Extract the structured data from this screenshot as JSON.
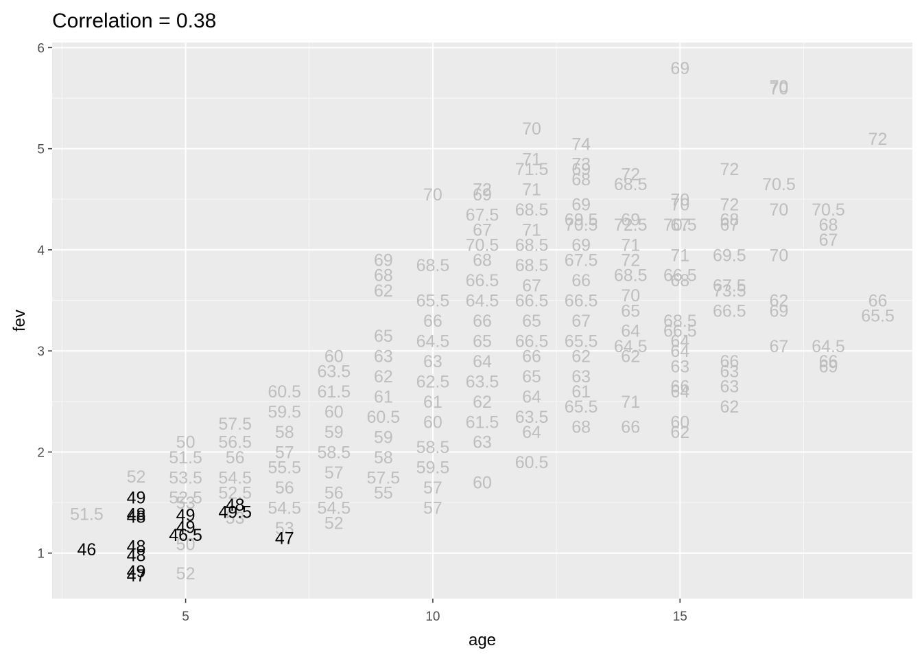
{
  "chart_data": {
    "type": "scatter",
    "title": "Correlation = 0.38",
    "xlabel": "age",
    "ylabel": "fev",
    "xlim": [
      2.3,
      19.7
    ],
    "ylim": [
      0.55,
      6.05
    ],
    "x_ticks": [
      5,
      10,
      15
    ],
    "y_ticks": [
      1,
      2,
      3,
      4,
      5,
      6
    ],
    "grid": true,
    "legend": "none",
    "point_colors": {
      "highlight": "#000000",
      "other": "#bebebe"
    },
    "highlighted": [
      {
        "x": 3,
        "y": 1.04,
        "label": "46"
      },
      {
        "x": 4,
        "y": 1.55,
        "label": "49"
      },
      {
        "x": 4,
        "y": 1.39,
        "label": "48"
      },
      {
        "x": 4,
        "y": 1.36,
        "label": "48"
      },
      {
        "x": 4,
        "y": 1.07,
        "label": "48"
      },
      {
        "x": 4,
        "y": 0.98,
        "label": "48"
      },
      {
        "x": 4,
        "y": 0.82,
        "label": "49"
      },
      {
        "x": 4,
        "y": 0.78,
        "label": "47"
      },
      {
        "x": 5,
        "y": 1.38,
        "label": "49"
      },
      {
        "x": 5,
        "y": 1.26,
        "label": "49"
      },
      {
        "x": 5,
        "y": 1.18,
        "label": "46.5"
      },
      {
        "x": 6,
        "y": 1.48,
        "label": "48"
      },
      {
        "x": 6,
        "y": 1.41,
        "label": "49.5"
      },
      {
        "x": 7,
        "y": 1.15,
        "label": "47"
      }
    ],
    "others": [
      {
        "x": 3,
        "y": 1.39,
        "label": "51.5"
      },
      {
        "x": 4,
        "y": 1.76,
        "label": "52"
      },
      {
        "x": 5,
        "y": 0.8,
        "label": "52"
      },
      {
        "x": 5,
        "y": 1.09,
        "label": "50"
      },
      {
        "x": 5,
        "y": 1.5,
        "label": "53"
      },
      {
        "x": 5,
        "y": 1.55,
        "label": "52.5"
      },
      {
        "x": 5,
        "y": 1.75,
        "label": "53.5"
      },
      {
        "x": 5,
        "y": 1.95,
        "label": "51.5"
      },
      {
        "x": 5,
        "y": 2.1,
        "label": "50"
      },
      {
        "x": 6,
        "y": 1.35,
        "label": "53"
      },
      {
        "x": 6,
        "y": 1.6,
        "label": "52.5"
      },
      {
        "x": 6,
        "y": 1.75,
        "label": "54.5"
      },
      {
        "x": 6,
        "y": 1.95,
        "label": "56"
      },
      {
        "x": 6,
        "y": 2.1,
        "label": "56.5"
      },
      {
        "x": 6,
        "y": 2.28,
        "label": "57.5"
      },
      {
        "x": 7,
        "y": 1.25,
        "label": "53"
      },
      {
        "x": 7,
        "y": 1.45,
        "label": "54.5"
      },
      {
        "x": 7,
        "y": 1.65,
        "label": "56"
      },
      {
        "x": 7,
        "y": 1.85,
        "label": "55.5"
      },
      {
        "x": 7,
        "y": 2.0,
        "label": "57"
      },
      {
        "x": 7,
        "y": 2.2,
        "label": "58"
      },
      {
        "x": 7,
        "y": 2.4,
        "label": "59.5"
      },
      {
        "x": 7,
        "y": 2.6,
        "label": "60.5"
      },
      {
        "x": 8,
        "y": 1.3,
        "label": "52"
      },
      {
        "x": 8,
        "y": 1.45,
        "label": "54.5"
      },
      {
        "x": 8,
        "y": 1.6,
        "label": "56"
      },
      {
        "x": 8,
        "y": 1.8,
        "label": "57"
      },
      {
        "x": 8,
        "y": 2.0,
        "label": "58.5"
      },
      {
        "x": 8,
        "y": 2.2,
        "label": "59"
      },
      {
        "x": 8,
        "y": 2.4,
        "label": "60"
      },
      {
        "x": 8,
        "y": 2.6,
        "label": "61.5"
      },
      {
        "x": 8,
        "y": 2.8,
        "label": "63.5"
      },
      {
        "x": 8,
        "y": 2.95,
        "label": "60"
      },
      {
        "x": 9,
        "y": 1.6,
        "label": "55"
      },
      {
        "x": 9,
        "y": 1.75,
        "label": "57.5"
      },
      {
        "x": 9,
        "y": 1.95,
        "label": "58"
      },
      {
        "x": 9,
        "y": 2.15,
        "label": "59"
      },
      {
        "x": 9,
        "y": 2.35,
        "label": "60.5"
      },
      {
        "x": 9,
        "y": 2.55,
        "label": "61"
      },
      {
        "x": 9,
        "y": 2.75,
        "label": "62"
      },
      {
        "x": 9,
        "y": 2.95,
        "label": "63"
      },
      {
        "x": 9,
        "y": 3.15,
        "label": "65"
      },
      {
        "x": 9,
        "y": 3.6,
        "label": "62"
      },
      {
        "x": 9,
        "y": 3.75,
        "label": "68"
      },
      {
        "x": 9,
        "y": 3.9,
        "label": "69"
      },
      {
        "x": 10,
        "y": 1.45,
        "label": "57"
      },
      {
        "x": 10,
        "y": 1.65,
        "label": "57"
      },
      {
        "x": 10,
        "y": 1.85,
        "label": "59.5"
      },
      {
        "x": 10,
        "y": 2.05,
        "label": "58.5"
      },
      {
        "x": 10,
        "y": 2.3,
        "label": "60"
      },
      {
        "x": 10,
        "y": 2.5,
        "label": "61"
      },
      {
        "x": 10,
        "y": 2.7,
        "label": "62.5"
      },
      {
        "x": 10,
        "y": 2.9,
        "label": "63"
      },
      {
        "x": 10,
        "y": 3.1,
        "label": "64.5"
      },
      {
        "x": 10,
        "y": 3.3,
        "label": "66"
      },
      {
        "x": 10,
        "y": 3.5,
        "label": "65.5"
      },
      {
        "x": 10,
        "y": 3.85,
        "label": "68.5"
      },
      {
        "x": 10,
        "y": 4.55,
        "label": "70"
      },
      {
        "x": 11,
        "y": 1.7,
        "label": "60"
      },
      {
        "x": 11,
        "y": 2.1,
        "label": "63"
      },
      {
        "x": 11,
        "y": 2.3,
        "label": "61.5"
      },
      {
        "x": 11,
        "y": 2.5,
        "label": "62"
      },
      {
        "x": 11,
        "y": 2.7,
        "label": "63.5"
      },
      {
        "x": 11,
        "y": 2.9,
        "label": "64"
      },
      {
        "x": 11,
        "y": 3.1,
        "label": "65"
      },
      {
        "x": 11,
        "y": 3.3,
        "label": "66"
      },
      {
        "x": 11,
        "y": 3.5,
        "label": "64.5"
      },
      {
        "x": 11,
        "y": 3.7,
        "label": "66.5"
      },
      {
        "x": 11,
        "y": 3.9,
        "label": "68"
      },
      {
        "x": 11,
        "y": 4.05,
        "label": "70.5"
      },
      {
        "x": 11,
        "y": 4.2,
        "label": "67"
      },
      {
        "x": 11,
        "y": 4.35,
        "label": "67.5"
      },
      {
        "x": 11,
        "y": 4.55,
        "label": "69"
      },
      {
        "x": 11,
        "y": 4.6,
        "label": "72"
      },
      {
        "x": 12,
        "y": 1.9,
        "label": "60.5"
      },
      {
        "x": 12,
        "y": 2.2,
        "label": "64"
      },
      {
        "x": 12,
        "y": 2.35,
        "label": "63.5"
      },
      {
        "x": 12,
        "y": 2.55,
        "label": "64"
      },
      {
        "x": 12,
        "y": 2.75,
        "label": "65"
      },
      {
        "x": 12,
        "y": 2.95,
        "label": "66"
      },
      {
        "x": 12,
        "y": 3.1,
        "label": "66.5"
      },
      {
        "x": 12,
        "y": 3.3,
        "label": "65"
      },
      {
        "x": 12,
        "y": 3.5,
        "label": "66.5"
      },
      {
        "x": 12,
        "y": 3.65,
        "label": "67"
      },
      {
        "x": 12,
        "y": 3.85,
        "label": "68.5"
      },
      {
        "x": 12,
        "y": 4.05,
        "label": "68.5"
      },
      {
        "x": 12,
        "y": 4.2,
        "label": "71"
      },
      {
        "x": 12,
        "y": 4.4,
        "label": "68.5"
      },
      {
        "x": 12,
        "y": 4.6,
        "label": "71"
      },
      {
        "x": 12,
        "y": 4.8,
        "label": "71.5"
      },
      {
        "x": 12,
        "y": 4.9,
        "label": "71"
      },
      {
        "x": 12,
        "y": 5.2,
        "label": "70"
      },
      {
        "x": 13,
        "y": 2.25,
        "label": "68"
      },
      {
        "x": 13,
        "y": 2.45,
        "label": "65.5"
      },
      {
        "x": 13,
        "y": 2.6,
        "label": "61"
      },
      {
        "x": 13,
        "y": 2.75,
        "label": "63"
      },
      {
        "x": 13,
        "y": 2.95,
        "label": "62"
      },
      {
        "x": 13,
        "y": 3.1,
        "label": "65.5"
      },
      {
        "x": 13,
        "y": 3.3,
        "label": "67"
      },
      {
        "x": 13,
        "y": 3.5,
        "label": "66.5"
      },
      {
        "x": 13,
        "y": 3.7,
        "label": "66"
      },
      {
        "x": 13,
        "y": 3.9,
        "label": "67.5"
      },
      {
        "x": 13,
        "y": 4.05,
        "label": "69"
      },
      {
        "x": 13,
        "y": 4.25,
        "label": "70.5"
      },
      {
        "x": 13,
        "y": 4.3,
        "label": "69.5"
      },
      {
        "x": 13,
        "y": 4.45,
        "label": "69"
      },
      {
        "x": 13,
        "y": 4.7,
        "label": "68"
      },
      {
        "x": 13,
        "y": 4.8,
        "label": "69"
      },
      {
        "x": 13,
        "y": 4.85,
        "label": "73"
      },
      {
        "x": 13,
        "y": 5.05,
        "label": "74"
      },
      {
        "x": 14,
        "y": 2.25,
        "label": "66"
      },
      {
        "x": 14,
        "y": 2.5,
        "label": "71"
      },
      {
        "x": 14,
        "y": 2.95,
        "label": "62"
      },
      {
        "x": 14,
        "y": 3.05,
        "label": "64.5"
      },
      {
        "x": 14,
        "y": 3.2,
        "label": "64"
      },
      {
        "x": 14,
        "y": 3.4,
        "label": "65"
      },
      {
        "x": 14,
        "y": 3.55,
        "label": "70"
      },
      {
        "x": 14,
        "y": 3.75,
        "label": "68.5"
      },
      {
        "x": 14,
        "y": 3.9,
        "label": "72"
      },
      {
        "x": 14,
        "y": 4.05,
        "label": "71"
      },
      {
        "x": 14,
        "y": 4.25,
        "label": "72.5"
      },
      {
        "x": 14,
        "y": 4.3,
        "label": "69"
      },
      {
        "x": 14,
        "y": 4.65,
        "label": "68.5"
      },
      {
        "x": 14,
        "y": 4.75,
        "label": "72"
      },
      {
        "x": 15,
        "y": 2.2,
        "label": "62"
      },
      {
        "x": 15,
        "y": 2.3,
        "label": "60"
      },
      {
        "x": 15,
        "y": 2.6,
        "label": "64"
      },
      {
        "x": 15,
        "y": 2.65,
        "label": "66"
      },
      {
        "x": 15,
        "y": 2.85,
        "label": "63"
      },
      {
        "x": 15,
        "y": 3.0,
        "label": "64"
      },
      {
        "x": 15,
        "y": 3.1,
        "label": "64"
      },
      {
        "x": 15,
        "y": 3.2,
        "label": "66.5"
      },
      {
        "x": 15,
        "y": 3.3,
        "label": "68.5"
      },
      {
        "x": 15,
        "y": 3.75,
        "label": "66.5"
      },
      {
        "x": 15,
        "y": 3.7,
        "label": "68"
      },
      {
        "x": 15,
        "y": 3.95,
        "label": "71"
      },
      {
        "x": 15,
        "y": 4.25,
        "label": "67"
      },
      {
        "x": 15,
        "y": 4.25,
        "label": "70.5"
      },
      {
        "x": 15,
        "y": 4.45,
        "label": "70"
      },
      {
        "x": 15,
        "y": 4.5,
        "label": "70"
      },
      {
        "x": 15,
        "y": 5.8,
        "label": "69"
      },
      {
        "x": 16,
        "y": 2.45,
        "label": "62"
      },
      {
        "x": 16,
        "y": 2.65,
        "label": "63"
      },
      {
        "x": 16,
        "y": 2.8,
        "label": "63"
      },
      {
        "x": 16,
        "y": 2.9,
        "label": "66"
      },
      {
        "x": 16,
        "y": 3.4,
        "label": "66.5"
      },
      {
        "x": 16,
        "y": 3.6,
        "label": "73.5"
      },
      {
        "x": 16,
        "y": 3.65,
        "label": "67.5"
      },
      {
        "x": 16,
        "y": 3.95,
        "label": "69.5"
      },
      {
        "x": 16,
        "y": 4.25,
        "label": "67"
      },
      {
        "x": 16,
        "y": 4.3,
        "label": "68"
      },
      {
        "x": 16,
        "y": 4.45,
        "label": "72"
      },
      {
        "x": 16,
        "y": 4.8,
        "label": "72"
      },
      {
        "x": 17,
        "y": 3.05,
        "label": "67"
      },
      {
        "x": 17,
        "y": 3.4,
        "label": "69"
      },
      {
        "x": 17,
        "y": 3.5,
        "label": "62"
      },
      {
        "x": 17,
        "y": 3.95,
        "label": "70"
      },
      {
        "x": 17,
        "y": 4.4,
        "label": "70"
      },
      {
        "x": 17,
        "y": 4.65,
        "label": "70.5"
      },
      {
        "x": 17,
        "y": 5.6,
        "label": "70"
      },
      {
        "x": 17,
        "y": 5.62,
        "label": "70"
      },
      {
        "x": 18,
        "y": 2.85,
        "label": "69"
      },
      {
        "x": 18,
        "y": 2.9,
        "label": "66"
      },
      {
        "x": 18,
        "y": 3.05,
        "label": "64.5"
      },
      {
        "x": 18,
        "y": 4.1,
        "label": "67"
      },
      {
        "x": 18,
        "y": 4.25,
        "label": "68"
      },
      {
        "x": 18,
        "y": 4.4,
        "label": "70.5"
      },
      {
        "x": 19,
        "y": 3.35,
        "label": "65.5"
      },
      {
        "x": 19,
        "y": 3.5,
        "label": "66"
      },
      {
        "x": 19,
        "y": 5.1,
        "label": "72"
      }
    ]
  }
}
